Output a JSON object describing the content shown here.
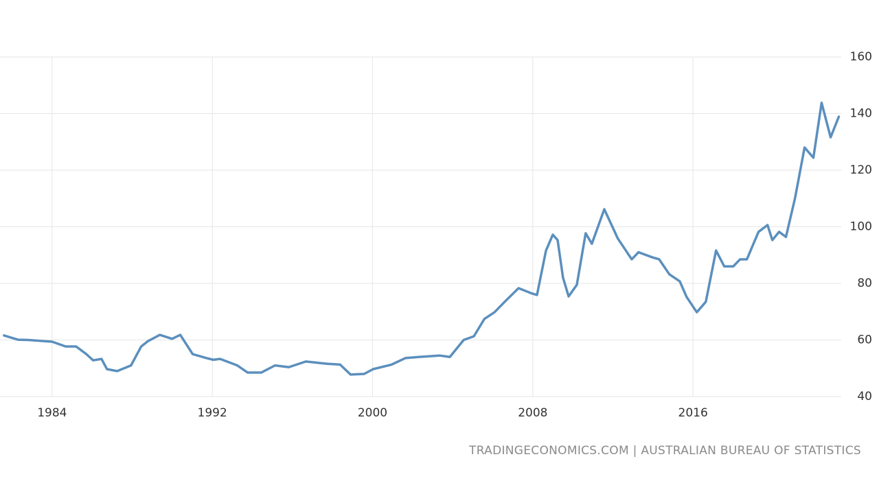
{
  "chart_data": {
    "type": "line",
    "x": [
      1981.6,
      1982.29,
      1982.8,
      1984.0,
      1984.68,
      1985.2,
      1985.71,
      1986.05,
      1986.47,
      1986.74,
      1987.25,
      1987.94,
      1988.45,
      1988.79,
      1989.38,
      1989.99,
      1990.4,
      1991.02,
      1991.71,
      1992.05,
      1992.39,
      1993.25,
      1993.76,
      1994.45,
      1995.13,
      1995.82,
      1996.67,
      1997.7,
      1998.38,
      1998.9,
      1999.58,
      2000.03,
      2000.95,
      2001.64,
      2002.32,
      2003.35,
      2003.86,
      2004.55,
      2005.06,
      2005.58,
      2006.09,
      2006.6,
      2007.29,
      2007.97,
      2008.21,
      2008.66,
      2009.0,
      2009.24,
      2009.51,
      2009.79,
      2010.2,
      2010.64,
      2010.95,
      2011.57,
      2012.25,
      2012.94,
      2013.28,
      2013.97,
      2014.31,
      2014.82,
      2015.34,
      2015.68,
      2016.19,
      2016.64,
      2017.15,
      2017.56,
      2018.01,
      2018.35,
      2018.69,
      2019.27,
      2019.72,
      2019.96,
      2020.3,
      2020.64,
      2021.09,
      2021.57,
      2022.01,
      2022.42,
      2022.87,
      2023.28
    ],
    "values": [
      61.6,
      60.1,
      60,
      59.4,
      57.7,
      57.7,
      55,
      52.8,
      53.3,
      49.7,
      49,
      51,
      57.7,
      59.6,
      61.8,
      60.4,
      61.8,
      55,
      53.6,
      53,
      53.3,
      51,
      48.5,
      48.5,
      51,
      50.4,
      52.4,
      51.6,
      51.3,
      47.8,
      48,
      49.7,
      51.3,
      53.6,
      54,
      54.5,
      54,
      60,
      61.3,
      67.4,
      69.8,
      73.5,
      78.3,
      76.4,
      75.9,
      91.6,
      97.2,
      95.3,
      82,
      75.4,
      79.5,
      97.7,
      94,
      106.2,
      95.8,
      88.5,
      91,
      89.2,
      88.5,
      83.2,
      80.7,
      75.2,
      69.8,
      73.5,
      91.6,
      86,
      86,
      88.5,
      88.5,
      98.2,
      100.6,
      95.3,
      98.2,
      96.4,
      110,
      128,
      124.4,
      143.8,
      131.6,
      138.9
    ],
    "color": "#5b8fbd",
    "xlim": [
      1981.4,
      2023.4
    ],
    "xticks": [
      1984,
      1992,
      2000,
      2008,
      2016
    ],
    "ylim": [
      40,
      160
    ],
    "yticks": [
      40,
      60,
      80,
      100,
      120,
      140,
      160
    ],
    "grid": true,
    "source": "TRADINGECONOMICS.COM | AUSTRALIAN BUREAU OF STATISTICS"
  }
}
